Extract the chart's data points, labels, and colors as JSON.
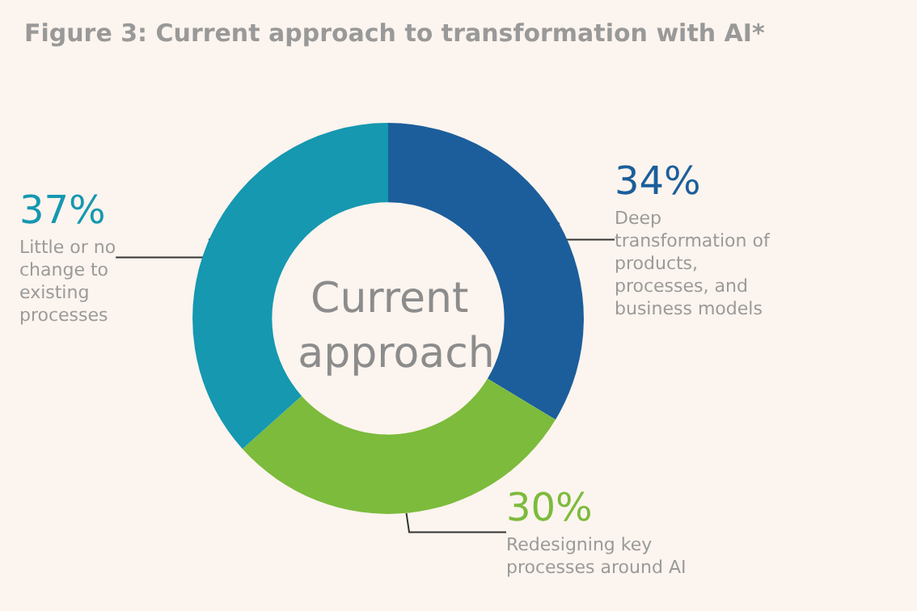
{
  "chart_data": {
    "type": "donut",
    "title": "Figure 3: Current approach to transformation with AI*",
    "annotations": [
      "Current approach"
    ],
    "categories": [
      "Deep transformation of products, processes, and business models",
      "Redesigning key processes around AI",
      "Little or no change to existing processes"
    ],
    "values": [
      34,
      30,
      37
    ],
    "value_labels": [
      "34%",
      "30%",
      "37%"
    ],
    "colors": [
      "#1b5e9b",
      "#7cbb3c",
      "#1598b0"
    ],
    "legend": false
  }
}
